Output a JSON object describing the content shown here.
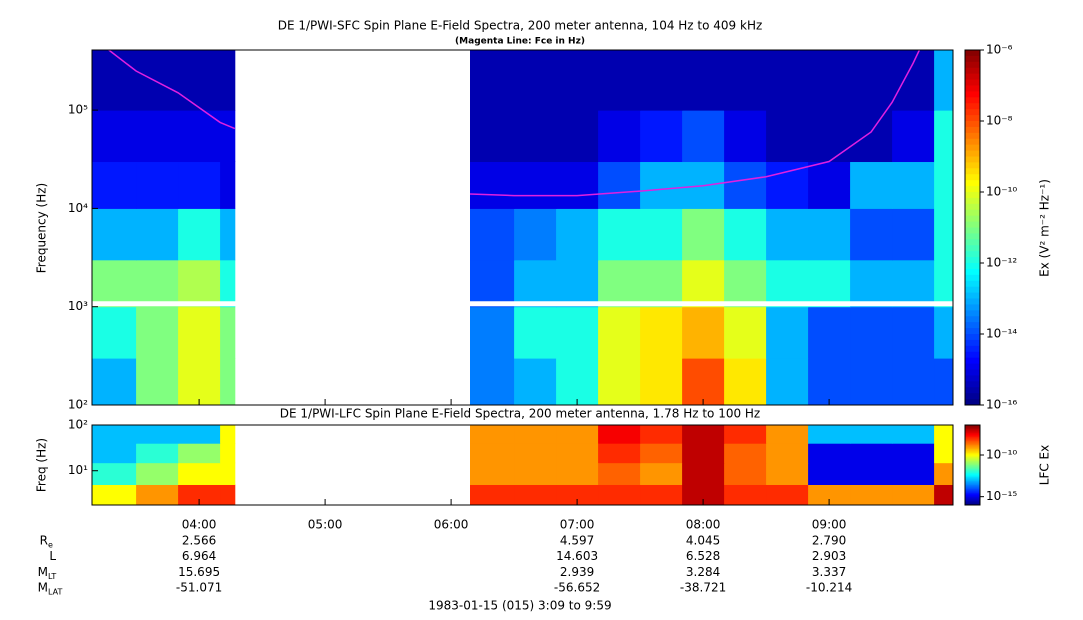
{
  "chart_data": [
    {
      "type": "spectrogram",
      "title": "DE 1/PWI-SFC  Spin Plane E-Field Spectra, 200 meter antenna, 104 Hz to 409 kHz",
      "subtitle": "(Magenta Line: Fce in Hz)",
      "ylabel": "Frequency (Hz)",
      "ylog": true,
      "xlim": [
        "03:09",
        "09:59"
      ],
      "ylim": [
        100,
        409000
      ],
      "yticks": [
        {
          "value": 100,
          "label": "10²"
        },
        {
          "value": 1000,
          "label": "10³"
        },
        {
          "value": 10000,
          "label": "10⁴"
        },
        {
          "value": 100000,
          "label": "10⁵"
        }
      ],
      "time_bins": [
        "03:09",
        "03:30",
        "03:50",
        "04:10",
        "04:17",
        "06:09",
        "06:30",
        "06:50",
        "07:10",
        "07:30",
        "07:50",
        "08:10",
        "08:30",
        "08:50",
        "09:10",
        "09:30",
        "09:50",
        "09:59"
      ],
      "freq_bins": [
        100,
        300,
        1000,
        3000,
        10000,
        30000,
        100000,
        409000
      ],
      "values": [
        [
          1e-13,
          1e-11,
          1e-10,
          1e-11,
          null,
          3e-14,
          1e-13,
          1e-12,
          1e-10,
          3e-10,
          1e-08,
          3e-10,
          1e-13,
          1e-14,
          1e-14,
          1e-14,
          1e-14
        ],
        [
          1e-12,
          1e-11,
          1e-10,
          1e-11,
          null,
          3e-14,
          1e-12,
          1e-12,
          1e-10,
          3e-10,
          1e-09,
          1e-10,
          1e-13,
          1e-14,
          1e-14,
          1e-14,
          1e-13
        ],
        [
          1e-11,
          1e-11,
          3e-11,
          1e-12,
          null,
          1e-14,
          1e-13,
          1e-13,
          1e-11,
          1e-11,
          1e-10,
          1e-11,
          1e-12,
          1e-12,
          1e-13,
          1e-13,
          1e-12
        ],
        [
          1e-13,
          1e-13,
          1e-12,
          1e-13,
          null,
          1e-14,
          3e-14,
          1e-13,
          1e-12,
          1e-12,
          1e-11,
          1e-12,
          1e-13,
          1e-13,
          1e-14,
          1e-14,
          1e-12
        ],
        [
          3e-15,
          3e-15,
          3e-15,
          1e-15,
          null,
          1e-15,
          1e-15,
          1e-15,
          1e-14,
          1e-13,
          1e-13,
          1e-14,
          3e-15,
          1e-15,
          1e-13,
          1e-13,
          1e-12
        ],
        [
          1e-15,
          1e-15,
          1e-15,
          1e-15,
          null,
          3e-16,
          3e-16,
          3e-16,
          1e-15,
          3e-15,
          1e-14,
          1e-15,
          3e-16,
          3e-16,
          3e-16,
          1e-15,
          1e-12
        ],
        [
          3e-16,
          3e-16,
          3e-16,
          3e-16,
          null,
          3e-16,
          3e-16,
          3e-16,
          3e-16,
          3e-16,
          3e-16,
          3e-16,
          3e-16,
          3e-16,
          3e-16,
          3e-16,
          1e-13
        ]
      ],
      "fce": {
        "color": "#e020e0",
        "x": [
          "03:17",
          "03:30",
          "03:50",
          "04:10",
          "04:17",
          "06:09",
          "06:30",
          "07:00",
          "07:30",
          "08:00",
          "08:30",
          "09:00",
          "09:20",
          "09:30",
          "09:40",
          "09:43"
        ],
        "values": [
          409000,
          250000,
          150000,
          75000,
          65000,
          14000,
          13500,
          13500,
          15000,
          17000,
          21000,
          30000,
          60000,
          120000,
          300000,
          409000
        ]
      },
      "colorbar": {
        "label": "Ex (V² m⁻² Hz⁻¹)",
        "lim": [
          1e-16,
          1e-06
        ],
        "ticks": [
          {
            "value": 1e-06,
            "label": "10⁻⁶"
          },
          {
            "value": 1e-08,
            "label": "10⁻⁸"
          },
          {
            "value": 1e-10,
            "label": "10⁻¹⁰"
          },
          {
            "value": 1e-12,
            "label": "10⁻¹²"
          },
          {
            "value": 1e-14,
            "label": "10⁻¹⁴"
          },
          {
            "value": 1e-16,
            "label": "10⁻¹⁶"
          }
        ]
      }
    },
    {
      "type": "spectrogram",
      "title": "DE 1/PWI-LFC  Spin Plane E-Field Spectra, 200 meter antenna, 1.78 Hz to 100 Hz",
      "ylabel": "Freq (Hz)",
      "ylog": true,
      "xlim": [
        "03:09",
        "09:59"
      ],
      "ylim": [
        1.78,
        100
      ],
      "yticks": [
        {
          "value": 10,
          "label": "10¹"
        },
        {
          "value": 100,
          "label": "10²"
        }
      ],
      "xticks": [
        "04:00",
        "05:00",
        "06:00",
        "07:00",
        "08:00",
        "09:00"
      ],
      "xlabel": "1983-01-15 (015) 3:09 to 9:59",
      "time_bins": [
        "03:09",
        "03:30",
        "03:50",
        "04:10",
        "04:17",
        "06:09",
        "06:30",
        "06:50",
        "07:10",
        "07:30",
        "07:50",
        "08:10",
        "08:30",
        "08:50",
        "09:10",
        "09:30",
        "09:50",
        "09:59"
      ],
      "freq_bins": [
        1.78,
        5,
        15,
        40,
        100
      ],
      "values": [
        [
          1e-10,
          1e-09,
          1e-08,
          1e-08,
          null,
          1e-08,
          1e-08,
          1e-08,
          1e-08,
          1e-08,
          1e-07,
          1e-08,
          1e-08,
          1e-09,
          1e-09,
          1e-09,
          1e-07
        ],
        [
          1e-12,
          1e-11,
          1e-10,
          1e-10,
          null,
          1e-09,
          1e-09,
          1e-09,
          3e-09,
          1e-09,
          1e-07,
          3e-09,
          1e-09,
          1e-15,
          1e-15,
          1e-15,
          1e-09
        ],
        [
          1e-13,
          1e-12,
          1e-11,
          1e-10,
          null,
          1e-09,
          1e-09,
          1e-09,
          1e-08,
          3e-09,
          1e-07,
          3e-09,
          1e-09,
          1e-15,
          1e-15,
          1e-15,
          1e-10
        ],
        [
          1e-13,
          1e-13,
          1e-13,
          1e-10,
          null,
          1e-09,
          1e-09,
          1e-09,
          3e-08,
          1e-08,
          1e-07,
          1e-08,
          1e-09,
          1e-13,
          1e-13,
          1e-13,
          1e-10
        ]
      ],
      "colorbar": {
        "label": "LFC Ex",
        "lim": [
          1e-16,
          4e-07
        ],
        "ticks": [
          {
            "value": 1e-10,
            "label": "10⁻¹⁰"
          },
          {
            "value": 1e-15,
            "label": "10⁻¹⁵"
          }
        ]
      }
    }
  ],
  "ephemeris": [
    {
      "label": "R",
      "sub": "e",
      "values": [
        "2.566",
        null,
        null,
        "4.597",
        "4.045",
        "2.790"
      ]
    },
    {
      "label": "L",
      "values": [
        "6.964",
        null,
        null,
        "14.603",
        "6.528",
        "2.903"
      ]
    },
    {
      "label": "M",
      "sub": "LT",
      "values": [
        "15.695",
        null,
        null,
        "2.939",
        "3.284",
        "3.337"
      ]
    },
    {
      "label": "M",
      "sub": "LAT",
      "values": [
        "-51.071",
        null,
        null,
        "-56.652",
        "-38.721",
        "-10.214"
      ]
    }
  ]
}
